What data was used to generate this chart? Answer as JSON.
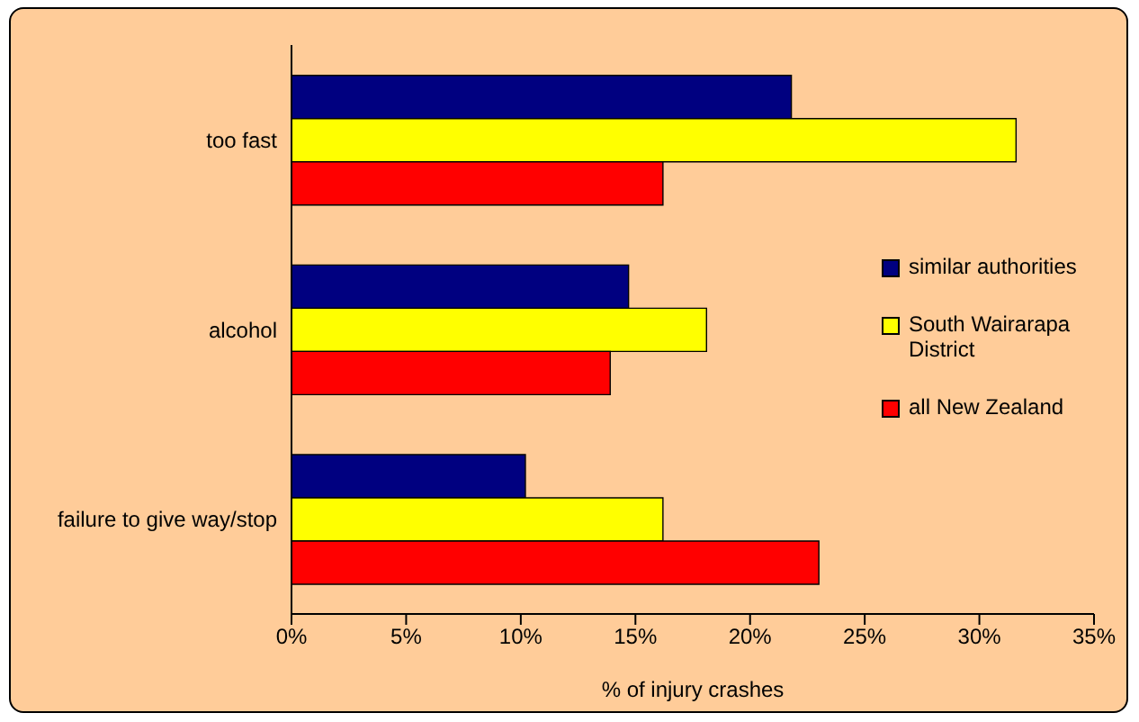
{
  "chart_data": {
    "type": "bar",
    "orientation": "horizontal",
    "xlabel": "% of injury crashes",
    "categories": [
      "too fast",
      "alcohol",
      "failure to give way/stop"
    ],
    "series": [
      {
        "name": "similar authorities",
        "color": "#000080",
        "values": [
          21.8,
          14.7,
          10.2
        ]
      },
      {
        "name": "South Wairarapa District",
        "color": "#ffff00",
        "values": [
          31.6,
          18.1,
          16.2
        ]
      },
      {
        "name": "all New Zealand",
        "color": "#ff0000",
        "values": [
          16.2,
          13.9,
          23.0
        ]
      }
    ],
    "xlim": [
      0,
      35
    ],
    "xticks": [
      {
        "value": 0,
        "label": "0%"
      },
      {
        "value": 5,
        "label": "5%"
      },
      {
        "value": 10,
        "label": "10%"
      },
      {
        "value": 15,
        "label": "15%"
      },
      {
        "value": 20,
        "label": "20%"
      },
      {
        "value": 25,
        "label": "25%"
      },
      {
        "value": 30,
        "label": "30%"
      },
      {
        "value": 35,
        "label": "35%"
      }
    ],
    "grid": false,
    "legend": "right"
  }
}
